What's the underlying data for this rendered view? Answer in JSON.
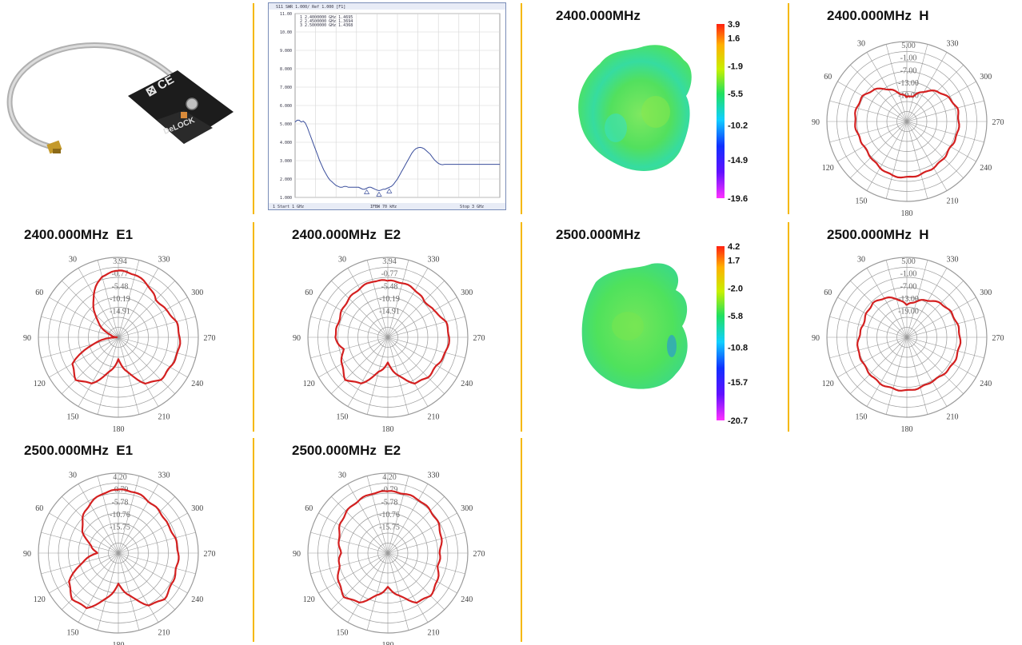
{
  "colors": {
    "separator": "#f5b800",
    "polar_trace": "#d42020",
    "polar_grid": "#9a9a9a",
    "vna_trace": "#3a4e9c",
    "vna_grid": "#d4d4d4",
    "body_green": "#4fe25c"
  },
  "product_photo": {
    "icon": "antenna-product-image",
    "brand": "DeLOCK"
  },
  "vswr": {
    "header": "S11  SWR 1.000/ Ref 1.000 [F1]",
    "markers": [
      "1  2.4000000 GHz  1.4695",
      "2  2.4500000 GHz  1.3694",
      "3  2.5000000 GHz  1.4368"
    ],
    "footer_left": "1  Start 1 GHz",
    "footer_center": "IFBW 70 kHz",
    "footer_right": "Stop 3 GHz"
  },
  "chart_data": [
    {
      "type": "line",
      "title": "",
      "ylabel": "SWR",
      "ylim": [
        1,
        11
      ],
      "yticks": [
        "11.00",
        "10.00",
        "9.000",
        "8.000",
        "7.000",
        "6.000",
        "5.000",
        "4.000",
        "3.000",
        "2.000",
        "1.000"
      ],
      "x": [
        0,
        1,
        2,
        3,
        4,
        5,
        6,
        7,
        8,
        9,
        10,
        11,
        12,
        13,
        14,
        15,
        16,
        17,
        18,
        19,
        20,
        21,
        22,
        23,
        24,
        25,
        26,
        27,
        28,
        29,
        30,
        31,
        32,
        33,
        34,
        35,
        36,
        37,
        38,
        39,
        40,
        41,
        42,
        43,
        44,
        45,
        46,
        47,
        48,
        49,
        50,
        51,
        52,
        53,
        54,
        55,
        56,
        57,
        58,
        59,
        60,
        61,
        62,
        63,
        64,
        65,
        66,
        67,
        68,
        69,
        70,
        71,
        72,
        73,
        74,
        75,
        76,
        77,
        78,
        79,
        80,
        81,
        82,
        83,
        84,
        85,
        86,
        87,
        88,
        89,
        90,
        91,
        92,
        93,
        94,
        95,
        96,
        97,
        98,
        99,
        100
      ],
      "values": [
        5.1,
        5.2,
        5.2,
        5.1,
        5.15,
        5.05,
        4.8,
        4.5,
        4.2,
        3.9,
        3.6,
        3.3,
        3.0,
        2.75,
        2.5,
        2.3,
        2.1,
        1.95,
        1.85,
        1.75,
        1.65,
        1.6,
        1.55,
        1.55,
        1.6,
        1.6,
        1.55,
        1.55,
        1.55,
        1.55,
        1.55,
        1.55,
        1.5,
        1.45,
        1.45,
        1.5,
        1.55,
        1.55,
        1.5,
        1.45,
        1.4,
        1.37,
        1.4,
        1.45,
        1.45,
        1.5,
        1.55,
        1.6,
        1.7,
        1.85,
        2.0,
        2.2,
        2.4,
        2.6,
        2.8,
        3.0,
        3.2,
        3.4,
        3.55,
        3.65,
        3.7,
        3.72,
        3.7,
        3.65,
        3.55,
        3.45,
        3.35,
        3.2,
        3.05,
        2.95,
        2.85,
        2.8,
        2.78,
        2.8,
        2.8,
        2.8,
        2.8,
        2.8,
        2.8,
        2.8,
        2.8,
        2.8,
        2.8,
        2.8,
        2.8,
        2.8,
        2.8,
        2.8,
        2.8,
        2.8,
        2.8,
        2.8,
        2.8,
        2.8,
        2.8,
        2.8,
        2.8,
        2.8,
        2.8,
        2.8,
        2.8
      ]
    },
    {
      "type": "polar",
      "title": "2400.000MHz  H",
      "ring_labels": [
        "5.00",
        "-1.00",
        "-7.00",
        "-13.00",
        "-19.00"
      ],
      "rmin": -25,
      "rmax": 5,
      "angle_labels": [
        "330",
        "300",
        "270",
        "240",
        "210",
        "180",
        "150",
        "120",
        "90",
        "60",
        "30"
      ],
      "angles": [
        0,
        15,
        30,
        45,
        60,
        75,
        90,
        105,
        120,
        135,
        150,
        165,
        180,
        195,
        210,
        225,
        240,
        255,
        270,
        285,
        300,
        315,
        330,
        345
      ],
      "values": [
        -16,
        -14,
        -11,
        -8,
        -6,
        -5.5,
        -5.5,
        -6,
        -6.5,
        -6,
        -5,
        -4,
        -4,
        -4.5,
        -5,
        -5.5,
        -6,
        -5.5,
        -5.5,
        -5.5,
        -7,
        -9,
        -12,
        -15
      ]
    },
    {
      "type": "polar",
      "title": "2400.000MHz  E1",
      "ring_labels": [
        "3.94",
        "-0.77",
        "-5.48",
        "-10.19",
        "-14.91"
      ],
      "rmin": -19.6,
      "rmax": 3.94,
      "angle_labels": [
        "330",
        "300",
        "270",
        "240",
        "210",
        "180",
        "150",
        "120",
        "90",
        "60",
        "30"
      ],
      "angles": [
        0,
        15,
        30,
        45,
        60,
        75,
        90,
        105,
        120,
        135,
        150,
        165,
        180,
        195,
        210,
        225,
        240,
        255,
        270,
        285,
        300,
        315,
        330,
        345
      ],
      "values": [
        0,
        -1,
        -5,
        -10,
        -14,
        -17.5,
        -19,
        -12,
        -4,
        -2,
        -4,
        -9,
        -13,
        -9,
        -4,
        -2,
        -2,
        -1.5,
        -1.5,
        -2,
        -3.5,
        -4,
        -2,
        -0.5
      ]
    },
    {
      "type": "polar",
      "title": "2400.000MHz  E2",
      "ring_labels": [
        "3.94",
        "-0.77",
        "-5.48",
        "-10.19",
        "-14.91"
      ],
      "rmin": -19.6,
      "rmax": 3.94,
      "angle_labels": [
        "330",
        "300",
        "270",
        "240",
        "210",
        "180",
        "150",
        "120",
        "90",
        "60",
        "30"
      ],
      "angles": [
        0,
        15,
        30,
        45,
        60,
        75,
        90,
        105,
        120,
        135,
        150,
        165,
        180,
        195,
        210,
        225,
        240,
        255,
        270,
        285,
        300,
        315,
        330,
        345
      ],
      "values": [
        -3,
        -2.5,
        -3,
        -3.5,
        -4,
        -4.5,
        -4,
        -6,
        -4,
        -2,
        -4,
        -9,
        -12,
        -8,
        -4,
        -3,
        -3,
        -2,
        -1.5,
        -2,
        -4,
        -4.5,
        -3.5,
        -3
      ]
    },
    {
      "type": "polar",
      "title": "2500.000MHz  H",
      "ring_labels": [
        "5.00",
        "-1.00",
        "-7.00",
        "-13.00",
        "-19.00"
      ],
      "rmin": -25,
      "rmax": 5,
      "angle_labels": [
        "330",
        "300",
        "270",
        "240",
        "210",
        "180",
        "150",
        "120",
        "90",
        "60",
        "30"
      ],
      "angles": [
        0,
        15,
        30,
        45,
        60,
        75,
        90,
        105,
        120,
        135,
        150,
        165,
        180,
        195,
        210,
        225,
        240,
        255,
        270,
        285,
        300,
        315,
        330,
        345
      ],
      "values": [
        -13,
        -10,
        -8,
        -7,
        -7.5,
        -8,
        -7,
        -6,
        -6,
        -5.5,
        -5,
        -5,
        -5,
        -5.5,
        -6,
        -5.5,
        -5,
        -5,
        -5,
        -5.5,
        -6,
        -7,
        -9,
        -11
      ]
    },
    {
      "type": "polar",
      "title": "2500.000MHz  E1",
      "ring_labels": [
        "4.20",
        "-0.79",
        "-5.78",
        "-10.76",
        "-15.75"
      ],
      "rmin": -20.7,
      "rmax": 4.2,
      "angle_labels": [
        "330",
        "300",
        "270",
        "240",
        "210",
        "180",
        "150",
        "120",
        "90",
        "60",
        "30"
      ],
      "angles": [
        0,
        15,
        30,
        45,
        60,
        75,
        90,
        105,
        120,
        135,
        150,
        165,
        180,
        195,
        210,
        225,
        240,
        255,
        270,
        285,
        300,
        315,
        330,
        345
      ],
      "values": [
        -1,
        -1.5,
        -3,
        -5,
        -8,
        -12,
        -14,
        -9,
        -3,
        -0.5,
        -1,
        -6,
        -11,
        -7,
        -2,
        -0.5,
        -1.5,
        -2,
        -2,
        -2.5,
        -3,
        -2.5,
        -2,
        -1
      ]
    },
    {
      "type": "polar",
      "title": "2500.000MHz  E2",
      "ring_labels": [
        "4.20",
        "-0.79",
        "-5.78",
        "-10.76",
        "-15.75"
      ],
      "rmin": -20.7,
      "rmax": 4.2,
      "angle_labels": [
        "330",
        "300",
        "270",
        "240",
        "210",
        "180",
        "150",
        "120",
        "90",
        "60",
        "30"
      ],
      "angles": [
        0,
        15,
        30,
        45,
        60,
        75,
        90,
        105,
        120,
        135,
        150,
        165,
        180,
        195,
        210,
        225,
        240,
        255,
        270,
        285,
        300,
        315,
        330,
        345
      ],
      "values": [
        -1.5,
        -1.5,
        -2,
        -2.5,
        -3.5,
        -5,
        -6,
        -5,
        -3,
        -1.5,
        -3,
        -7,
        -10,
        -7,
        -3,
        -2,
        -3,
        -4.5,
        -4.5,
        -3.5,
        -2.5,
        -2,
        -1.5,
        -1.5
      ]
    },
    {
      "type": "heatmap",
      "title": "2400.000MHz",
      "colorbar_ticks": [
        "3.9",
        "1.6",
        "-1.9",
        "-5.5",
        "-10.2",
        "-14.9",
        "-19.6"
      ]
    },
    {
      "type": "heatmap",
      "title": "2500.000MHz",
      "colorbar_ticks": [
        "4.2",
        "1.7",
        "-2.0",
        "-5.8",
        "-10.8",
        "-15.7",
        "-20.7"
      ]
    }
  ]
}
